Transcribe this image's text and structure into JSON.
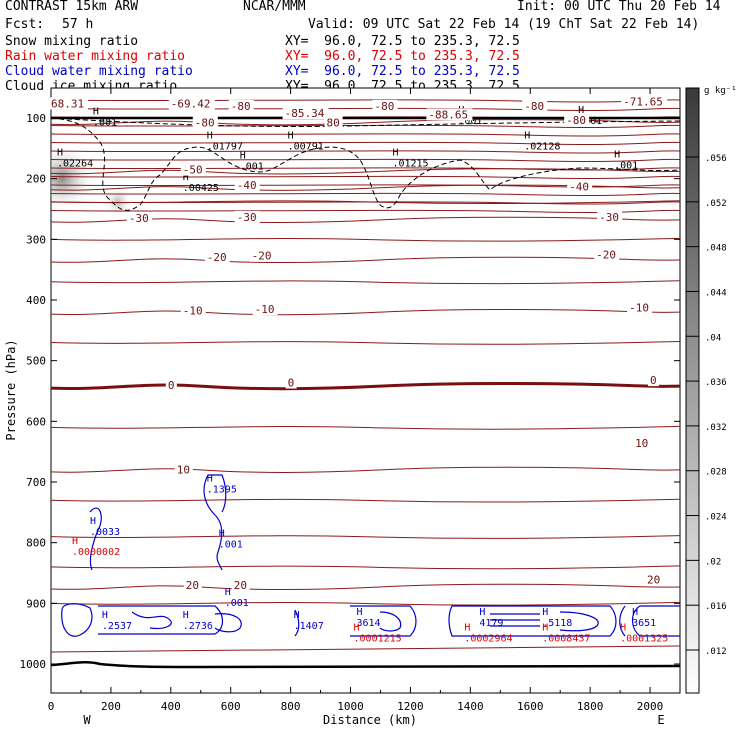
{
  "header": {
    "model": "CONTRAST 15km ARW",
    "org": "NCAR/MMM",
    "init": "Init: 00 UTC Thu 20 Feb 14",
    "fcst_label": "Fcst:",
    "fcst_value": "57 h",
    "valid": "Valid: 09 UTC Sat 22 Feb 14 (19 ChT Sat 22 Feb 14)",
    "fields": [
      {
        "name": "Snow mixing ratio",
        "xy": "XY=  96.0, 72.5 to 235.3, 72.5",
        "color": "#000000"
      },
      {
        "name": "Rain water mixing ratio",
        "xy": "XY=  96.0, 72.5 to 235.3, 72.5",
        "color": "#dd0000"
      },
      {
        "name": "Cloud water mixing ratio",
        "xy": "XY=  96.0, 72.5 to 235.3, 72.5",
        "color": "#0000cc"
      },
      {
        "name": "Cloud ice mixing ratio",
        "xy": "XY=  96.0, 72.5 to 235.3, 72.5",
        "color": "#000000"
      }
    ]
  },
  "chart_data": {
    "type": "contour-cross-section",
    "xlabel": "Distance (km)",
    "ylabel": "Pressure (hPa)",
    "xlim": [
      0,
      2100
    ],
    "ylim": [
      1050,
      50
    ],
    "x_ticks": [
      "0",
      "200",
      "400",
      "600",
      "800",
      "1000",
      "1200",
      "1400",
      "1600",
      "1800",
      "2000"
    ],
    "y_ticks": [
      "100",
      "200",
      "300",
      "400",
      "500",
      "600",
      "700",
      "800",
      "900",
      "1000"
    ],
    "x_end_labels": {
      "left": "W",
      "right": "E"
    },
    "colorbar": {
      "unit": "g kg⁻¹",
      "labels": [
        ".056",
        ".052",
        ".048",
        ".044",
        ".04",
        ".036",
        ".032",
        ".028",
        ".024",
        ".02",
        ".016",
        ".012"
      ]
    },
    "temperature_isotherms": [
      {
        "label": "-80",
        "p": 107
      },
      {
        "label": "-50",
        "p": 188
      },
      {
        "label": "-40",
        "p": 215
      },
      {
        "label": "-30",
        "p": 268
      },
      {
        "label": "-20",
        "p": 334
      },
      {
        "label": "-10",
        "p": 420
      },
      {
        "label": "0",
        "p": 542
      },
      {
        "label": "10",
        "p": 680
      },
      {
        "label": "20",
        "p": 873
      }
    ],
    "isotherm_labels": [
      {
        "text": "68.31",
        "x": 0,
        "p": 81
      },
      {
        "text": "-69.42",
        "x": 400,
        "p": 81
      },
      {
        "text": "-80",
        "x": 600,
        "p": 85
      },
      {
        "text": "-80",
        "x": 1080,
        "p": 85
      },
      {
        "text": "-80",
        "x": 1580,
        "p": 85
      },
      {
        "text": "-71.65",
        "x": 1910,
        "p": 78
      },
      {
        "text": "-85.34",
        "x": 780,
        "p": 97
      },
      {
        "text": "-88.65",
        "x": 1260,
        "p": 99
      },
      {
        "text": "-80",
        "x": 480,
        "p": 112
      },
      {
        "text": "80",
        "x": 920,
        "p": 112
      },
      {
        "text": "-80",
        "x": 1720,
        "p": 108
      },
      {
        "text": "-50",
        "x": 440,
        "p": 190
      },
      {
        "text": "-40",
        "x": 620,
        "p": 215
      },
      {
        "text": "-40",
        "x": 1730,
        "p": 218
      },
      {
        "text": "-30",
        "x": 260,
        "p": 270
      },
      {
        "text": "-30",
        "x": 620,
        "p": 268
      },
      {
        "text": "-30",
        "x": 1830,
        "p": 268
      },
      {
        "text": "-20",
        "x": 520,
        "p": 334
      },
      {
        "text": "-20",
        "x": 670,
        "p": 332
      },
      {
        "text": "-20",
        "x": 1820,
        "p": 330
      },
      {
        "text": "-10",
        "x": 440,
        "p": 422
      },
      {
        "text": "-10",
        "x": 680,
        "p": 420
      },
      {
        "text": "-10",
        "x": 1930,
        "p": 417
      },
      {
        "text": "0",
        "x": 390,
        "p": 545
      },
      {
        "text": "0",
        "x": 790,
        "p": 541
      },
      {
        "text": "0",
        "x": 2000,
        "p": 537
      },
      {
        "text": "10",
        "x": 420,
        "p": 684
      },
      {
        "text": "10",
        "x": 1950,
        "p": 641
      },
      {
        "text": "20",
        "x": 450,
        "p": 875
      },
      {
        "text": "20",
        "x": 610,
        "p": 875
      },
      {
        "text": "20",
        "x": 1990,
        "p": 866
      }
    ],
    "maxima_labels": [
      {
        "value": ".001",
        "x": 140,
        "p": 112,
        "color": "#000000"
      },
      {
        "value": ".01797",
        "x": 520,
        "p": 152,
        "color": "#000000"
      },
      {
        "value": ".00791",
        "x": 790,
        "p": 152,
        "color": "#000000"
      },
      {
        "value": ".001",
        "x": 630,
        "p": 185,
        "color": "#000000"
      },
      {
        "value": ".01215",
        "x": 1140,
        "p": 180,
        "color": "#000000"
      },
      {
        "value": ".001",
        "x": 1360,
        "p": 110,
        "color": "#000000"
      },
      {
        "value": ".02128",
        "x": 1580,
        "p": 152,
        "color": "#000000"
      },
      {
        "value": ".001",
        "x": 1760,
        "p": 110,
        "color": "#000000"
      },
      {
        "value": ".001",
        "x": 1880,
        "p": 183,
        "color": "#000000"
      },
      {
        "value": ".02264",
        "x": 20,
        "p": 180,
        "color": "#000000"
      },
      {
        "value": ".00425",
        "x": 440,
        "p": 220,
        "color": "#000000"
      },
      {
        "value": ".0033",
        "x": 130,
        "p": 787,
        "color": "#0000cc"
      },
      {
        "value": ".1395",
        "x": 520,
        "p": 717,
        "color": "#0000cc"
      },
      {
        "value": ".001",
        "x": 560,
        "p": 808,
        "color": "#0000cc"
      },
      {
        "value": ".0000002",
        "x": 70,
        "p": 820,
        "color": "#dd0000"
      },
      {
        "value": ".001",
        "x": 580,
        "p": 904,
        "color": "#0000cc"
      },
      {
        "value": ".2537",
        "x": 170,
        "p": 942,
        "color": "#0000cc"
      },
      {
        "value": ".2736",
        "x": 440,
        "p": 942,
        "color": "#0000cc"
      },
      {
        "value": ".1407",
        "x": 810,
        "p": 942,
        "color": "#0000cc"
      },
      {
        "value": "3614",
        "x": 1020,
        "p": 937,
        "color": "#0000cc"
      },
      {
        "value": ".0001215",
        "x": 1010,
        "p": 963,
        "color": "#dd0000"
      },
      {
        "value": "4179",
        "x": 1430,
        "p": 937,
        "color": "#0000cc"
      },
      {
        "value": ".0002964",
        "x": 1380,
        "p": 963,
        "color": "#dd0000"
      },
      {
        "value": ".5118",
        "x": 1640,
        "p": 937,
        "color": "#0000cc"
      },
      {
        "value": ".0008437",
        "x": 1640,
        "p": 963,
        "color": "#dd0000"
      },
      {
        "value": "3651",
        "x": 1940,
        "p": 937,
        "color": "#0000cc"
      },
      {
        "value": ".0001325",
        "x": 1900,
        "p": 963,
        "color": "#dd0000"
      }
    ],
    "colors": {
      "isotherm": "#8b1a1a",
      "freezing_line": "#7a0f0f",
      "cloud_water": "#0000cc",
      "rain_water": "#dd0000",
      "ice_snow": "#000000"
    }
  }
}
